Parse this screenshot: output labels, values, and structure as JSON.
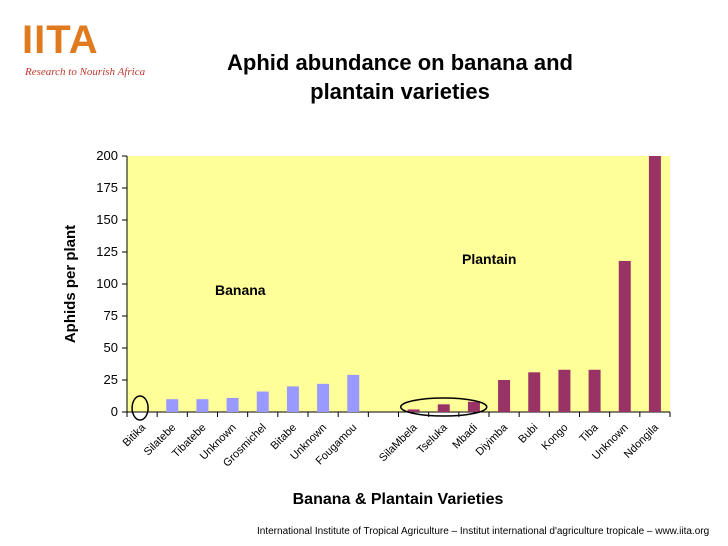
{
  "logo": {
    "text": "IITA",
    "tagline": "Research to Nourish Africa"
  },
  "page_title": "Aphid abundance on banana and plantain varieties",
  "footer": "International Institute of Tropical Agriculture – Institut international d'agriculture tropicale – www.iita.org",
  "colors": {
    "plot_bg": "#ffff99",
    "banana": "#9999ff",
    "plantain": "#993366",
    "logo": "#e07a1f"
  },
  "chart_data": {
    "type": "bar",
    "title": "Aphid abundance on banana and plantain varieties",
    "xlabel": "Banana & Plantain  Varieties",
    "ylabel": "Aphids per plant",
    "ylim": [
      0,
      200
    ],
    "yticks": [
      0,
      25,
      50,
      75,
      100,
      125,
      150,
      175,
      200
    ],
    "grid": false,
    "categories": [
      "Bitika",
      "Silatebe",
      "Tibatebe",
      "Unknown",
      "Grosmichel",
      "Bitabe",
      "Unknown",
      "Fougamou",
      "",
      "SilaMbela",
      "Tseluka",
      "Mbadi",
      "Diyimba",
      "Bubi",
      "Kongo",
      "Tiba",
      "Unknown",
      "Ndongila"
    ],
    "series": [
      {
        "name": "Banana",
        "values": [
          0,
          10,
          10,
          11,
          16,
          20,
          22,
          29,
          null,
          null,
          null,
          null,
          null,
          null,
          null,
          null,
          null,
          null
        ]
      },
      {
        "name": "Plantain",
        "values": [
          null,
          null,
          null,
          null,
          null,
          null,
          null,
          null,
          null,
          2,
          6,
          8,
          25,
          31,
          33,
          33,
          118,
          200
        ]
      }
    ],
    "annotations": [
      "Banana",
      "Plantain"
    ],
    "highlighted": [
      "Bitika",
      "SilaMbela",
      "Tseluka",
      "Mbadi"
    ]
  }
}
